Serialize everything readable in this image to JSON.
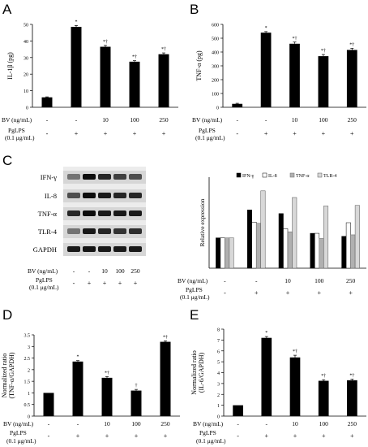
{
  "panels": {
    "A": "A",
    "B": "B",
    "C": "C",
    "D": "D",
    "E": "E"
  },
  "row_labels": {
    "bv": "BV (ng/mL)",
    "pglps_1": "PgLPS",
    "pglps_2": "(0.1 μg/mL)"
  },
  "bv_values": [
    "-",
    "-",
    "10",
    "100",
    "250"
  ],
  "lps_values": [
    "-",
    "+",
    "+",
    "+",
    "+"
  ],
  "blot": {
    "labels": [
      "IFN-γ",
      "IL-8",
      "TNF-α",
      "TLR-4",
      "GAPDH"
    ],
    "bv_values": [
      "-",
      "-",
      "10",
      "100",
      "250"
    ],
    "lps_values": [
      "-",
      "+",
      "+",
      "+",
      "+"
    ]
  },
  "chart_data": [
    {
      "id": "A",
      "type": "bar",
      "ylabel": "IL-1β (pg)",
      "ylim": [
        0,
        50
      ],
      "yticks": [
        0,
        10,
        20,
        30,
        40,
        50
      ],
      "values": [
        6,
        48.5,
        36.5,
        27.5,
        32
      ],
      "errors": [
        0.3,
        0.8,
        0.8,
        0.6,
        0.8
      ],
      "marks": [
        "",
        "*",
        "*†",
        "*†",
        "*†"
      ]
    },
    {
      "id": "B",
      "type": "bar",
      "ylabel": "TNF-α (pg)",
      "ylim": [
        0,
        600
      ],
      "yticks": [
        0,
        100,
        200,
        300,
        400,
        500,
        600
      ],
      "values": [
        25,
        540,
        460,
        370,
        415
      ],
      "errors": [
        4,
        8,
        12,
        12,
        12
      ],
      "marks": [
        "",
        "*",
        "*†",
        "*†",
        "*†"
      ]
    },
    {
      "id": "C",
      "type": "bar",
      "ylabel": "Relative expression",
      "ylim": [
        0,
        3
      ],
      "yticks": [],
      "legend": [
        "IFN-γ",
        "IL-8",
        "TNF-α",
        "TLR-4"
      ],
      "series": [
        {
          "name": "IFN-γ",
          "values": [
            1,
            1.92,
            1.8,
            1.15,
            1.05
          ]
        },
        {
          "name": "IL-8",
          "values": [
            1,
            1.52,
            1.3,
            1.15,
            1.5
          ]
        },
        {
          "name": "TNF-α",
          "values": [
            1,
            1.48,
            1.2,
            0.98,
            1.1
          ]
        },
        {
          "name": "TLR-4",
          "values": [
            1,
            2.55,
            2.33,
            2.05,
            2.07
          ]
        }
      ]
    },
    {
      "id": "D",
      "type": "bar",
      "ylabel": [
        "Normalized ratio",
        "(TNF-α/GAPDH)"
      ],
      "ylim": [
        0,
        3.5
      ],
      "yticks": [
        0,
        0.5,
        1,
        1.5,
        2,
        2.5,
        3,
        3.5
      ],
      "values": [
        1,
        2.35,
        1.65,
        1.1,
        3.2
      ],
      "errors": [
        0,
        0.04,
        0.05,
        0.05,
        0.04
      ],
      "marks": [
        "",
        "*",
        "*†",
        "†",
        "*†"
      ]
    },
    {
      "id": "E",
      "type": "bar",
      "ylabel": [
        "Normalized ratio",
        "(IL-6/GAPDH)"
      ],
      "ylim": [
        0,
        8
      ],
      "yticks": [
        0,
        1,
        2,
        3,
        4,
        5,
        6,
        7,
        8
      ],
      "values": [
        1,
        7.2,
        5.4,
        3.25,
        3.3
      ],
      "errors": [
        0,
        0.12,
        0.2,
        0.1,
        0.1
      ],
      "marks": [
        "",
        "*",
        "*†",
        "*†",
        "*†"
      ]
    }
  ],
  "colors": {
    "bar": "#000000",
    "axis": "#000000",
    "il8": "#ffffff",
    "tnf": "#b0b0b0",
    "tlr4": "#d8d8d8"
  }
}
